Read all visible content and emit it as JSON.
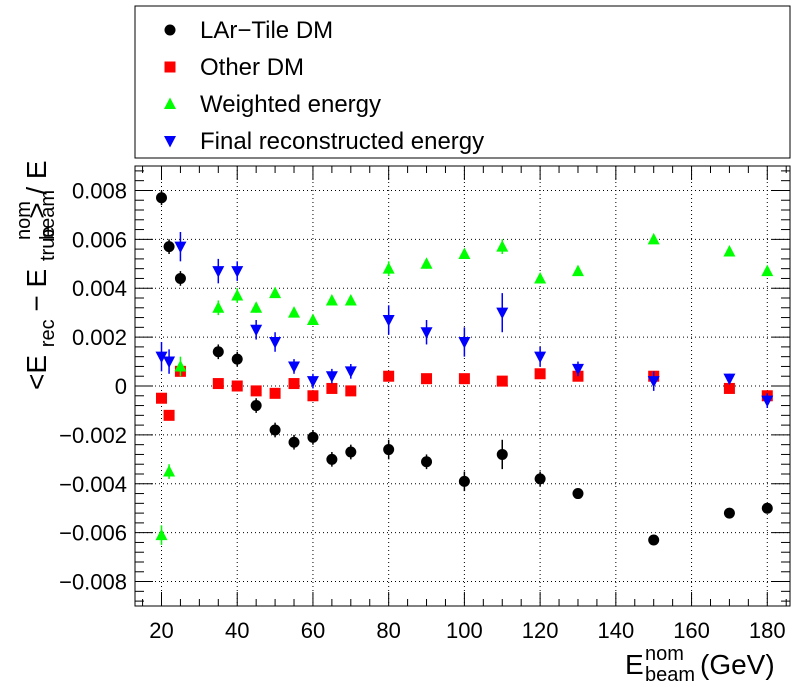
{
  "chart_data": {
    "type": "scatter",
    "xlabel": {
      "main": "E",
      "sup": "nom",
      "sub": "beam",
      "unit": "(GeV)"
    },
    "ylabel": {
      "lhs": "<E",
      "lhs_sub": "rec",
      "mid": " − E",
      "mid_sub": "true",
      "rhs": "> / E",
      "rhs_sup": "nom",
      "rhs_sub": "beam"
    },
    "xlim": [
      13,
      186
    ],
    "ylim": [
      -0.009,
      0.009
    ],
    "x_ticks": [
      20,
      40,
      60,
      80,
      100,
      120,
      140,
      160,
      180
    ],
    "x_tick_labels": [
      "20",
      "40",
      "60",
      "80",
      "100",
      "120",
      "140",
      "160",
      "180"
    ],
    "y_ticks": [
      -0.008,
      -0.006,
      -0.004,
      -0.002,
      0,
      0.002,
      0.004,
      0.006,
      0.008
    ],
    "y_tick_labels": [
      "−0.008",
      "−0.006",
      "−0.004",
      "−0.002",
      "0",
      "0.002",
      "0.004",
      "0.006",
      "0.008"
    ],
    "grid": true,
    "legend_position": "top",
    "series": [
      {
        "name": "LAr−Tile DM",
        "marker": "circle",
        "color": "#000000",
        "points": [
          {
            "x": 20,
            "y": 0.0077,
            "err": 0.0003
          },
          {
            "x": 22,
            "y": 0.0057,
            "err": 0.0003
          },
          {
            "x": 25,
            "y": 0.0044,
            "err": 0.0003
          },
          {
            "x": 35,
            "y": 0.0014,
            "err": 0.0003
          },
          {
            "x": 40,
            "y": 0.0011,
            "err": 0.0003
          },
          {
            "x": 45,
            "y": -0.0008,
            "err": 0.0003
          },
          {
            "x": 50,
            "y": -0.0018,
            "err": 0.0003
          },
          {
            "x": 55,
            "y": -0.0023,
            "err": 0.0003
          },
          {
            "x": 60,
            "y": -0.0021,
            "err": 0.0003
          },
          {
            "x": 65,
            "y": -0.003,
            "err": 0.0003
          },
          {
            "x": 70,
            "y": -0.0027,
            "err": 0.0003
          },
          {
            "x": 80,
            "y": -0.0026,
            "err": 0.0004
          },
          {
            "x": 90,
            "y": -0.0031,
            "err": 0.0003
          },
          {
            "x": 100,
            "y": -0.0039,
            "err": 0.0004
          },
          {
            "x": 110,
            "y": -0.0028,
            "err": 0.0006
          },
          {
            "x": 120,
            "y": -0.0038,
            "err": 0.0003
          },
          {
            "x": 130,
            "y": -0.0044,
            "err": 0.0002
          },
          {
            "x": 150,
            "y": -0.0063,
            "err": 0.0002
          },
          {
            "x": 170,
            "y": -0.0052,
            "err": 0.0002
          },
          {
            "x": 180,
            "y": -0.005,
            "err": 0.0002
          }
        ]
      },
      {
        "name": "Other DM",
        "marker": "square",
        "color": "#ff0000",
        "points": [
          {
            "x": 20,
            "y": -0.0005,
            "err": 0.0002
          },
          {
            "x": 22,
            "y": -0.0012,
            "err": 0.0002
          },
          {
            "x": 25,
            "y": 0.0006,
            "err": 0.0002
          },
          {
            "x": 35,
            "y": 0.0001,
            "err": 0.0001
          },
          {
            "x": 40,
            "y": 0.0,
            "err": 0.0001
          },
          {
            "x": 45,
            "y": -0.0002,
            "err": 0.0001
          },
          {
            "x": 50,
            "y": -0.0003,
            "err": 0.0001
          },
          {
            "x": 55,
            "y": 0.0001,
            "err": 0.0001
          },
          {
            "x": 60,
            "y": -0.0004,
            "err": 0.0001
          },
          {
            "x": 65,
            "y": -0.0001,
            "err": 0.0001
          },
          {
            "x": 70,
            "y": -0.0002,
            "err": 0.0001
          },
          {
            "x": 80,
            "y": 0.0004,
            "err": 0.0001
          },
          {
            "x": 90,
            "y": 0.0003,
            "err": 0.0001
          },
          {
            "x": 100,
            "y": 0.0003,
            "err": 0.0001
          },
          {
            "x": 110,
            "y": 0.0002,
            "err": 0.0001
          },
          {
            "x": 120,
            "y": 0.0005,
            "err": 0.0001
          },
          {
            "x": 130,
            "y": 0.0004,
            "err": 0.0001
          },
          {
            "x": 150,
            "y": 0.0004,
            "err": 0.0001
          },
          {
            "x": 170,
            "y": -0.0001,
            "err": 0.0001
          },
          {
            "x": 180,
            "y": -0.0004,
            "err": 0.0001
          }
        ]
      },
      {
        "name": "Weighted energy",
        "marker": "triangle-up",
        "color": "#00ff00",
        "points": [
          {
            "x": 20,
            "y": -0.0061,
            "err": 0.0004
          },
          {
            "x": 22,
            "y": -0.0035,
            "err": 0.0003
          },
          {
            "x": 25,
            "y": 0.0008,
            "err": 0.0004
          },
          {
            "x": 35,
            "y": 0.0032,
            "err": 0.0003
          },
          {
            "x": 40,
            "y": 0.0037,
            "err": 0.0003
          },
          {
            "x": 45,
            "y": 0.0032,
            "err": 0.0002
          },
          {
            "x": 50,
            "y": 0.0038,
            "err": 0.0002
          },
          {
            "x": 55,
            "y": 0.003,
            "err": 0.0002
          },
          {
            "x": 60,
            "y": 0.0027,
            "err": 0.0002
          },
          {
            "x": 65,
            "y": 0.0035,
            "err": 0.0002
          },
          {
            "x": 70,
            "y": 0.0035,
            "err": 0.0002
          },
          {
            "x": 80,
            "y": 0.0048,
            "err": 0.0003
          },
          {
            "x": 90,
            "y": 0.005,
            "err": 0.0002
          },
          {
            "x": 100,
            "y": 0.0054,
            "err": 0.0002
          },
          {
            "x": 110,
            "y": 0.0057,
            "err": 0.0003
          },
          {
            "x": 120,
            "y": 0.0044,
            "err": 0.0002
          },
          {
            "x": 130,
            "y": 0.0047,
            "err": 0.0001
          },
          {
            "x": 150,
            "y": 0.006,
            "err": 0.0001
          },
          {
            "x": 170,
            "y": 0.0055,
            "err": 0.0001
          },
          {
            "x": 180,
            "y": 0.0047,
            "err": 0.0001
          }
        ]
      },
      {
        "name": "Final reconstructed energy",
        "marker": "triangle-down",
        "color": "#0000ff",
        "points": [
          {
            "x": 20,
            "y": 0.0012,
            "err": 0.0006
          },
          {
            "x": 22,
            "y": 0.001,
            "err": 0.0005
          },
          {
            "x": 25,
            "y": 0.0057,
            "err": 0.0006
          },
          {
            "x": 35,
            "y": 0.0047,
            "err": 0.0005
          },
          {
            "x": 40,
            "y": 0.0047,
            "err": 0.0004
          },
          {
            "x": 45,
            "y": 0.0023,
            "err": 0.0004
          },
          {
            "x": 50,
            "y": 0.0018,
            "err": 0.0004
          },
          {
            "x": 55,
            "y": 0.0008,
            "err": 0.0003
          },
          {
            "x": 60,
            "y": 0.0002,
            "err": 0.0003
          },
          {
            "x": 65,
            "y": 0.0004,
            "err": 0.0003
          },
          {
            "x": 70,
            "y": 0.0006,
            "err": 0.0003
          },
          {
            "x": 80,
            "y": 0.0027,
            "err": 0.0006
          },
          {
            "x": 90,
            "y": 0.0022,
            "err": 0.0005
          },
          {
            "x": 100,
            "y": 0.0018,
            "err": 0.0006
          },
          {
            "x": 110,
            "y": 0.003,
            "err": 0.0008
          },
          {
            "x": 120,
            "y": 0.0012,
            "err": 0.0004
          },
          {
            "x": 130,
            "y": 0.0007,
            "err": 0.0003
          },
          {
            "x": 150,
            "y": 0.0002,
            "err": 0.0004
          },
          {
            "x": 170,
            "y": 0.0003,
            "err": 0.0002
          },
          {
            "x": 180,
            "y": -0.0006,
            "err": 0.0003
          }
        ]
      }
    ]
  }
}
